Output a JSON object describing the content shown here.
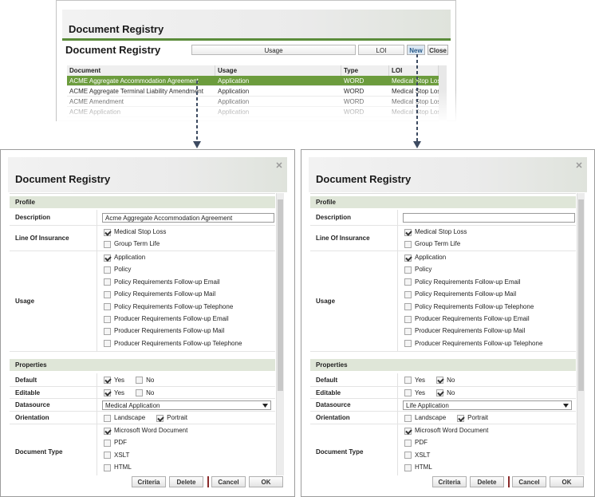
{
  "registry": {
    "title": "Document Registry",
    "subtitle": "Document Registry",
    "usage_filter": "Usage",
    "loi_filter": "LOI",
    "buttons": [
      "New",
      "Close"
    ],
    "columns": [
      "Document",
      "Usage",
      "Type",
      "LOI"
    ],
    "rows": [
      [
        "ACME Aggregate Accommodation Agreement",
        "Application",
        "WORD",
        "Medical Stop Loss"
      ],
      [
        "ACME Aggregate Terminal Liability Amendment",
        "Application",
        "WORD",
        "Medical Stop Loss"
      ],
      [
        "ACME Amendment",
        "Application",
        "WORD",
        "Medical Stop Loss"
      ],
      [
        "ACME Application",
        "Application",
        "WORD",
        "Medical Stop Loss"
      ]
    ]
  },
  "dialogs": [
    {
      "title": "Document Registry",
      "sections": [
        {
          "title": "Profile",
          "fields": [
            {
              "label": "Description",
              "input": "Acme Aggregate Accommodation Agreement"
            },
            {
              "label": "Line Of Insurance",
              "options": [
                {
                  "label": "Medical Stop Loss",
                  "checked": true
                },
                {
                  "label": "Group Term Life",
                  "checked": false
                }
              ]
            },
            {
              "label": "Usage",
              "options": [
                {
                  "label": "Application",
                  "checked": true
                },
                {
                  "label": "Policy",
                  "checked": false
                },
                {
                  "label": "Policy Requirements Follow-up Email",
                  "checked": false
                },
                {
                  "label": "Policy Requirements Follow-up Mail",
                  "checked": false
                },
                {
                  "label": "Policy Requirements Follow-up Telephone",
                  "checked": false
                },
                {
                  "label": "Producer Requirements Follow-up Email",
                  "checked": false
                },
                {
                  "label": "Producer Requirements Follow-up Mail",
                  "checked": false
                },
                {
                  "label": "Producer Requirements Follow-up Telephone",
                  "checked": false
                }
              ]
            }
          ]
        },
        {
          "title": "Properties",
          "fields": [
            {
              "label": "Default",
              "options": [
                {
                  "label": "Yes",
                  "checked": true
                },
                {
                  "label": "No",
                  "checked": false
                }
              ]
            },
            {
              "label": "Editable",
              "options": [
                {
                  "label": "Yes",
                  "checked": true
                },
                {
                  "label": "No",
                  "checked": false
                }
              ]
            },
            {
              "label": "Datasource",
              "select": "Medical Application"
            },
            {
              "label": "Orientation",
              "options": [
                {
                  "label": "Landscape",
                  "checked": false
                },
                {
                  "label": "Portrait",
                  "checked": true
                }
              ]
            },
            {
              "label": "Document Type",
              "options": [
                {
                  "label": "Microsoft Word Document",
                  "checked": true
                },
                {
                  "label": "PDF",
                  "checked": false
                },
                {
                  "label": "XSLT",
                  "checked": false
                },
                {
                  "label": "HTML",
                  "checked": false
                }
              ]
            }
          ]
        }
      ],
      "buttons": [
        "Criteria",
        "Delete",
        "Cancel",
        "OK"
      ]
    },
    {
      "title": "Document Registry",
      "sections": [
        {
          "title": "Profile",
          "fields": [
            {
              "label": "Description"
            },
            {
              "label": "Line Of Insurance",
              "options": [
                {
                  "label": "Medical Stop Loss",
                  "checked": true
                },
                {
                  "label": "Group Term Life",
                  "checked": false
                }
              ]
            },
            {
              "label": "Usage",
              "options": [
                {
                  "label": "Application",
                  "checked": true
                },
                {
                  "label": "Policy",
                  "checked": false
                },
                {
                  "label": "Policy Requirements Follow-up Email",
                  "checked": false
                },
                {
                  "label": "Policy Requirements Follow-up Mail",
                  "checked": false
                },
                {
                  "label": "Policy Requirements Follow-up Telephone",
                  "checked": false
                },
                {
                  "label": "Producer Requirements Follow-up Email",
                  "checked": false
                },
                {
                  "label": "Producer Requirements Follow-up Mail",
                  "checked": false
                },
                {
                  "label": "Producer Requirements Follow-up Telephone",
                  "checked": false
                }
              ]
            }
          ]
        },
        {
          "title": "Properties",
          "fields": [
            {
              "label": "Default",
              "options": [
                {
                  "label": "Yes",
                  "checked": false
                },
                {
                  "label": "No",
                  "checked": true
                }
              ]
            },
            {
              "label": "Editable",
              "options": [
                {
                  "label": "Yes",
                  "checked": false
                },
                {
                  "label": "No",
                  "checked": true
                }
              ]
            },
            {
              "label": "Datasource",
              "select": "Life Application"
            },
            {
              "label": "Orientation",
              "options": [
                {
                  "label": "Landscape",
                  "checked": false
                },
                {
                  "label": "Portrait",
                  "checked": true
                }
              ]
            },
            {
              "label": "Document Type",
              "options": [
                {
                  "label": "Microsoft Word Document",
                  "checked": true
                },
                {
                  "label": "PDF",
                  "checked": false
                },
                {
                  "label": "XSLT",
                  "checked": false
                },
                {
                  "label": "HTML",
                  "checked": false
                }
              ]
            }
          ]
        }
      ],
      "buttons": [
        "Criteria",
        "Delete",
        "Cancel",
        "OK"
      ]
    }
  ]
}
